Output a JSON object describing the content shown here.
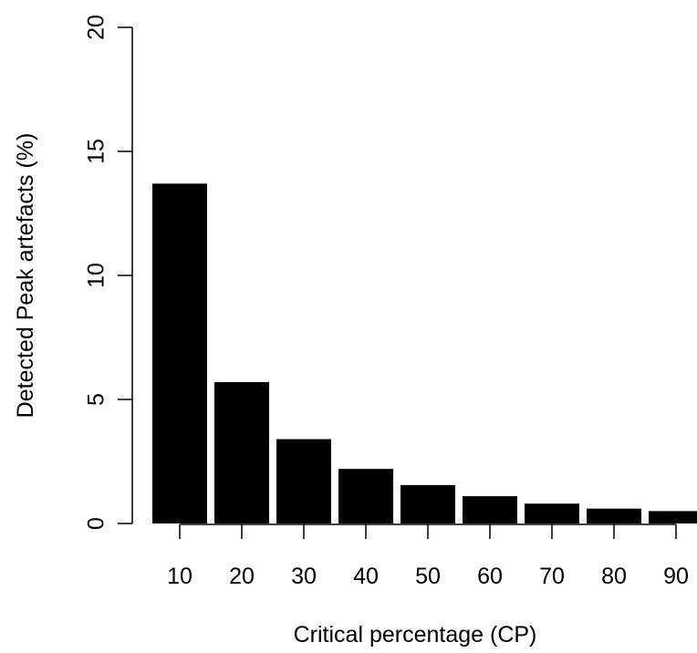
{
  "chart_data": {
    "type": "bar",
    "title": "",
    "xlabel": "Critical percentage (CP)",
    "ylabel": "Detected Peak artefacts (%)",
    "categories": [
      "10",
      "20",
      "30",
      "40",
      "50",
      "60",
      "70",
      "80",
      "90"
    ],
    "values": [
      13.7,
      5.7,
      3.4,
      2.2,
      1.55,
      1.1,
      0.8,
      0.6,
      0.5
    ],
    "ylim": [
      0,
      20
    ],
    "yticks": [
      "0",
      "5",
      "10",
      "15",
      "20"
    ],
    "grid": false,
    "legend": "none",
    "bar_color": "#000000"
  }
}
